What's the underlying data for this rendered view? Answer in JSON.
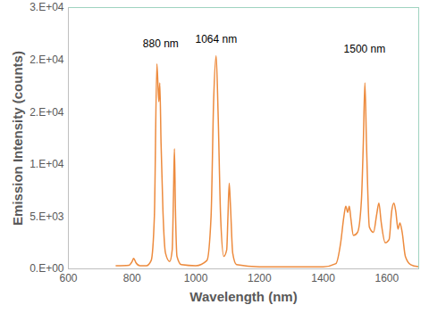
{
  "chart_data": {
    "type": "line",
    "x_label": "Wavelength (nm)",
    "y_label": "Emission Intensity (counts)",
    "xlim": [
      600,
      1700
    ],
    "xticks": [
      600,
      800,
      1000,
      1200,
      1400,
      1600
    ],
    "ylim": [
      0,
      25000
    ],
    "yticks": [
      {
        "value": 0,
        "label": "0.E+00"
      },
      {
        "value": 5000,
        "label": "5.E+03"
      },
      {
        "value": 10000,
        "label": "1.E+04"
      },
      {
        "value": 15000,
        "label": "2.E+04"
      },
      {
        "value": 20000,
        "label": "2.E+04"
      },
      {
        "value": 25000,
        "label": "3.E+04"
      }
    ],
    "grid": false,
    "color": "#ed8b3e",
    "x": [
      750,
      790,
      800,
      805,
      812,
      825,
      845,
      860,
      870,
      878,
      884,
      887,
      891,
      897,
      905,
      918,
      926,
      930,
      933,
      936,
      941,
      955,
      1000,
      1035,
      1048,
      1056,
      1064,
      1070,
      1078,
      1088,
      1097,
      1101,
      1105,
      1109,
      1116,
      1128,
      1200,
      1300,
      1400,
      1440,
      1455,
      1465,
      1471,
      1477,
      1482,
      1487,
      1495,
      1508,
      1520,
      1526,
      1531,
      1536,
      1545,
      1558,
      1568,
      1575,
      1582,
      1595,
      1607,
      1615,
      1622,
      1628,
      1635,
      1641,
      1648,
      1658,
      1675,
      1700
    ],
    "values": [
      300,
      350,
      700,
      1000,
      600,
      300,
      300,
      800,
      5000,
      19600,
      16000,
      17800,
      12000,
      5500,
      1500,
      700,
      1800,
      7000,
      11500,
      6000,
      1200,
      400,
      300,
      800,
      5000,
      16000,
      20400,
      15000,
      5000,
      1200,
      1800,
      5000,
      8200,
      6000,
      1500,
      400,
      200,
      200,
      200,
      500,
      2500,
      5000,
      6000,
      5400,
      6000,
      4800,
      3200,
      3500,
      6500,
      12000,
      17800,
      12000,
      4000,
      3500,
      5200,
      6300,
      4500,
      2500,
      2800,
      5500,
      6300,
      5500,
      3800,
      4400,
      3500,
      1200,
      400,
      200
    ],
    "annotations": [
      {
        "text": "880 nm",
        "x": 890,
        "y": 21500
      },
      {
        "text": "1064 nm",
        "x": 1064,
        "y": 22000
      },
      {
        "text": "1500 nm",
        "x": 1530,
        "y": 21000
      }
    ]
  }
}
